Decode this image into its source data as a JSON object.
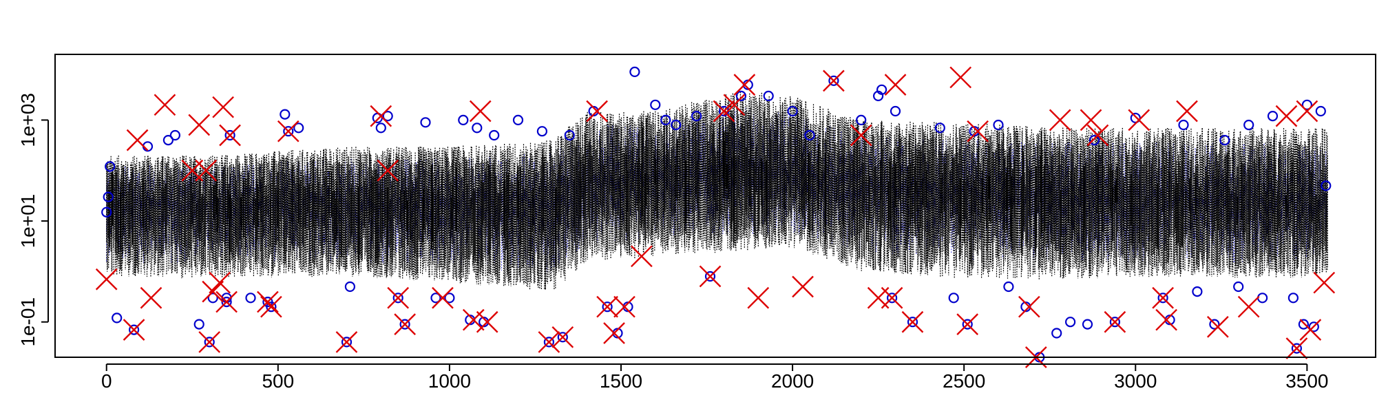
{
  "chart_data": {
    "type": "scatter",
    "title": "",
    "xlabel": "",
    "ylabel": "",
    "x_scale": "linear",
    "y_scale": "log",
    "xlim": [
      -150,
      3700
    ],
    "ylim": [
      0.02,
      20000
    ],
    "x_ticks": [
      0,
      500,
      1000,
      1500,
      2000,
      2500,
      3000,
      3500
    ],
    "x_tick_labels": [
      "0",
      "500",
      "1000",
      "1500",
      "2000",
      "2500",
      "3000",
      "3500"
    ],
    "y_ticks": [
      0.1,
      10,
      1000
    ],
    "y_tick_labels": [
      "1e-01",
      "1e+01",
      "1e+03"
    ],
    "grid": false,
    "legend": "none",
    "colors": {
      "band": "#000000",
      "circles": "#0000cc",
      "crosses": "#dd0000",
      "axis": "#000000"
    },
    "band_envelope": {
      "description_units": "x index, y value (log axis)",
      "x": [
        0,
        300,
        700,
        1000,
        1300,
        1400,
        1600,
        1850,
        2000,
        2200,
        2500,
        2800,
        3100,
        3400,
        3560
      ],
      "low": [
        0.8,
        0.7,
        0.8,
        0.6,
        0.4,
        1.5,
        2.0,
        2.5,
        3.0,
        1.0,
        0.7,
        0.7,
        0.8,
        0.7,
        0.8
      ],
      "center": [
        20,
        20,
        20,
        20,
        22,
        60,
        70,
        90,
        80,
        50,
        40,
        30,
        25,
        25,
        20
      ],
      "high": [
        200,
        200,
        300,
        300,
        400,
        1500,
        1500,
        4000,
        3000,
        1000,
        900,
        700,
        700,
        700,
        700
      ]
    },
    "series": [
      {
        "marker": "circle",
        "points": [
          [
            0,
            15
          ],
          [
            5,
            30
          ],
          [
            10,
            120
          ],
          [
            30,
            0.12
          ],
          [
            80,
            0.07
          ],
          [
            120,
            300
          ],
          [
            180,
            400
          ],
          [
            200,
            500
          ],
          [
            270,
            0.09
          ],
          [
            300,
            0.04
          ],
          [
            310,
            0.3
          ],
          [
            350,
            0.3
          ],
          [
            350,
            0.25
          ],
          [
            360,
            500
          ],
          [
            420,
            0.3
          ],
          [
            470,
            0.25
          ],
          [
            480,
            0.2
          ],
          [
            520,
            1300
          ],
          [
            530,
            600
          ],
          [
            560,
            700
          ],
          [
            700,
            0.04
          ],
          [
            710,
            0.5
          ],
          [
            790,
            1100
          ],
          [
            800,
            700
          ],
          [
            820,
            1200
          ],
          [
            850,
            0.3
          ],
          [
            870,
            0.09
          ],
          [
            930,
            900
          ],
          [
            960,
            0.3
          ],
          [
            1000,
            0.3
          ],
          [
            1040,
            1000
          ],
          [
            1060,
            0.11
          ],
          [
            1080,
            700
          ],
          [
            1100,
            0.1
          ],
          [
            1130,
            500
          ],
          [
            1200,
            1000
          ],
          [
            1270,
            600
          ],
          [
            1290,
            0.04
          ],
          [
            1330,
            0.05
          ],
          [
            1350,
            500
          ],
          [
            1420,
            1500
          ],
          [
            1460,
            0.2
          ],
          [
            1490,
            0.06
          ],
          [
            1520,
            0.2
          ],
          [
            1540,
            9000
          ],
          [
            1600,
            2000
          ],
          [
            1630,
            1000
          ],
          [
            1660,
            800
          ],
          [
            1720,
            1200
          ],
          [
            1760,
            0.8
          ],
          [
            1800,
            1500
          ],
          [
            1850,
            3000
          ],
          [
            1870,
            5000
          ],
          [
            1930,
            3000
          ],
          [
            2000,
            1500
          ],
          [
            2050,
            500
          ],
          [
            2120,
            6000
          ],
          [
            2200,
            1000
          ],
          [
            2250,
            3000
          ],
          [
            2260,
            4000
          ],
          [
            2290,
            0.3
          ],
          [
            2300,
            1500
          ],
          [
            2350,
            0.1
          ],
          [
            2430,
            700
          ],
          [
            2470,
            0.3
          ],
          [
            2510,
            0.09
          ],
          [
            2530,
            600
          ],
          [
            2600,
            800
          ],
          [
            2630,
            0.5
          ],
          [
            2680,
            0.2
          ],
          [
            2720,
            0.02
          ],
          [
            2770,
            0.06
          ],
          [
            2810,
            0.1
          ],
          [
            2860,
            0.09
          ],
          [
            2880,
            400
          ],
          [
            2940,
            0.1
          ],
          [
            3000,
            1100
          ],
          [
            3080,
            0.3
          ],
          [
            3100,
            0.11
          ],
          [
            3140,
            800
          ],
          [
            3180,
            0.4
          ],
          [
            3230,
            0.09
          ],
          [
            3260,
            400
          ],
          [
            3300,
            0.5
          ],
          [
            3330,
            800
          ],
          [
            3370,
            0.3
          ],
          [
            3400,
            1200
          ],
          [
            3460,
            0.3
          ],
          [
            3470,
            0.03
          ],
          [
            3490,
            0.09
          ],
          [
            3500,
            2000
          ],
          [
            3520,
            0.08
          ],
          [
            3540,
            1500
          ],
          [
            3555,
            50
          ]
        ]
      },
      {
        "marker": "cross",
        "points": [
          [
            0,
            0.7
          ],
          [
            80,
            0.07
          ],
          [
            90,
            400
          ],
          [
            130,
            0.3
          ],
          [
            170,
            2000
          ],
          [
            250,
            100
          ],
          [
            270,
            800
          ],
          [
            290,
            100
          ],
          [
            300,
            0.04
          ],
          [
            310,
            0.4
          ],
          [
            330,
            0.6
          ],
          [
            340,
            1800
          ],
          [
            350,
            0.25
          ],
          [
            360,
            500
          ],
          [
            470,
            0.25
          ],
          [
            480,
            0.2
          ],
          [
            530,
            600
          ],
          [
            700,
            0.04
          ],
          [
            800,
            1200
          ],
          [
            820,
            100
          ],
          [
            850,
            0.3
          ],
          [
            870,
            0.09
          ],
          [
            980,
            0.3
          ],
          [
            1070,
            0.11
          ],
          [
            1090,
            1500
          ],
          [
            1110,
            0.1
          ],
          [
            1290,
            0.04
          ],
          [
            1330,
            0.05
          ],
          [
            1430,
            1500
          ],
          [
            1460,
            0.2
          ],
          [
            1480,
            0.06
          ],
          [
            1510,
            0.2
          ],
          [
            1560,
            2
          ],
          [
            1760,
            0.8
          ],
          [
            1800,
            1500
          ],
          [
            1830,
            2000
          ],
          [
            1860,
            5000
          ],
          [
            1900,
            0.3
          ],
          [
            2030,
            0.5
          ],
          [
            2120,
            6000
          ],
          [
            2200,
            500
          ],
          [
            2250,
            0.3
          ],
          [
            2290,
            0.3
          ],
          [
            2300,
            5000
          ],
          [
            2350,
            0.1
          ],
          [
            2490,
            7000
          ],
          [
            2510,
            0.09
          ],
          [
            2540,
            600
          ],
          [
            2690,
            0.2
          ],
          [
            2710,
            0.02
          ],
          [
            2780,
            1000
          ],
          [
            2870,
            1000
          ],
          [
            2890,
            500
          ],
          [
            2940,
            0.1
          ],
          [
            3010,
            1000
          ],
          [
            3080,
            0.3
          ],
          [
            3090,
            0.11
          ],
          [
            3150,
            1500
          ],
          [
            3240,
            0.08
          ],
          [
            3330,
            0.2
          ],
          [
            3440,
            1200
          ],
          [
            3470,
            0.03
          ],
          [
            3500,
            1500
          ],
          [
            3510,
            0.07
          ],
          [
            3550,
            0.6
          ]
        ]
      }
    ]
  }
}
